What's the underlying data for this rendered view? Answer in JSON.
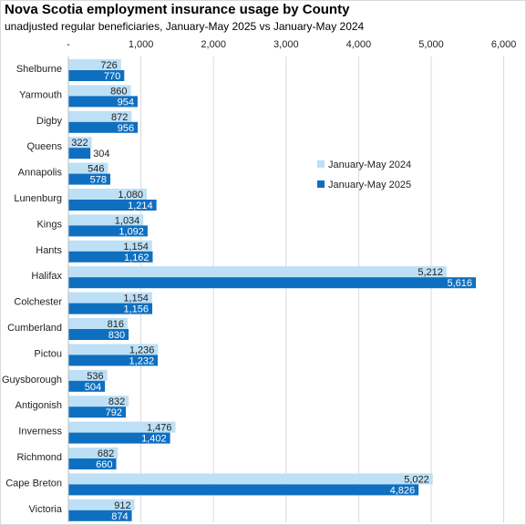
{
  "colors": {
    "series_2024": "#BDE0F6",
    "series_2025": "#0E6FC0",
    "grid": "#D9D9D9"
  },
  "chart_data": {
    "type": "bar",
    "orientation": "horizontal",
    "title": "Nova Scotia employment insurance usage by County",
    "subtitle": "unadjusted regular beneficiaries, January-May 2025 vs January-May 2024",
    "xlim": [
      0,
      6000
    ],
    "xticks": [
      0,
      1000,
      2000,
      3000,
      4000,
      5000,
      6000
    ],
    "xtick_labels": [
      "-",
      "1,000",
      "2,000",
      "3,000",
      "4,000",
      "5,000",
      "6,000"
    ],
    "grid": true,
    "legend_position": "right",
    "categories": [
      "Shelburne",
      "Yarmouth",
      "Digby",
      "Queens",
      "Annapolis",
      "Lunenburg",
      "Kings",
      "Hants",
      "Halifax",
      "Colchester",
      "Cumberland",
      "Pictou",
      "Guysborough",
      "Antigonish",
      "Inverness",
      "Richmond",
      "Cape Breton",
      "Victoria"
    ],
    "series": [
      {
        "name": "January-May 2024",
        "values": [
          726,
          860,
          872,
          322,
          546,
          1080,
          1034,
          1154,
          5212,
          1154,
          816,
          1236,
          536,
          832,
          1476,
          682,
          5022,
          912
        ]
      },
      {
        "name": "January-May 2025",
        "values": [
          770,
          954,
          956,
          304,
          578,
          1214,
          1092,
          1162,
          5616,
          1156,
          830,
          1232,
          504,
          792,
          1402,
          660,
          4826,
          874
        ]
      }
    ]
  }
}
